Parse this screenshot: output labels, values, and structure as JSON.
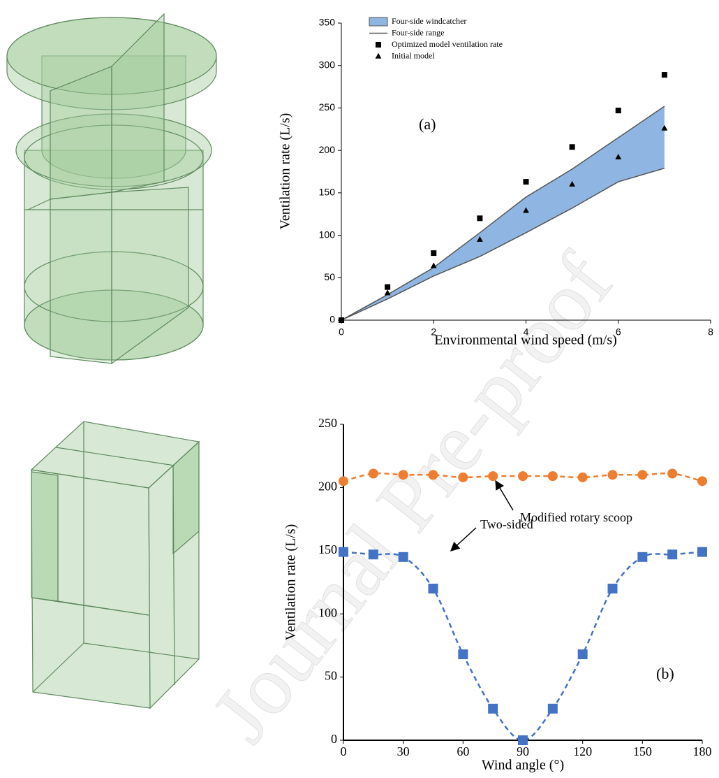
{
  "watermark": "Journal Pre-proof",
  "chart_data": [
    {
      "type": "scatter",
      "x": [
        0,
        1,
        2,
        3,
        4,
        5,
        6,
        7
      ],
      "series": [
        {
          "name": "Four-side windcatcher",
          "type": "band",
          "color": "#8fb6e2",
          "upper": [
            0,
            30,
            62,
            103,
            145,
            178,
            215,
            252
          ],
          "lower": [
            0,
            25,
            52,
            75,
            103,
            132,
            163,
            179
          ]
        },
        {
          "name": "Four-side range",
          "type": "band-edge",
          "color": "#555555"
        },
        {
          "name": "Optimized model ventilation rate",
          "type": "points",
          "marker": "square",
          "color": "#000000",
          "values": [
            0,
            39,
            79,
            120,
            163,
            204,
            247,
            289
          ]
        },
        {
          "name": "Initial model",
          "type": "points",
          "marker": "triangle",
          "color": "#000000",
          "values": [
            0,
            32,
            64,
            95,
            129,
            160,
            192,
            226
          ]
        }
      ],
      "xlim": [
        0,
        8
      ],
      "xticks": [
        0,
        2,
        4,
        6,
        8
      ],
      "ylim": [
        0,
        350
      ],
      "yticks": [
        0,
        50,
        100,
        150,
        200,
        250,
        300,
        350
      ],
      "xlabel": "Environmental wind speed (m/s)",
      "ylabel": "Ventilation rate (L/s)",
      "annotations": [
        "(a)"
      ],
      "legend": "top-left"
    },
    {
      "type": "line",
      "x": [
        0,
        15,
        30,
        45,
        60,
        75,
        90,
        105,
        120,
        135,
        150,
        165,
        180
      ],
      "series": [
        {
          "type": "dashed-markers",
          "marker": "circle",
          "color": "#ed7d31",
          "values": [
            205,
            211,
            210,
            210,
            208,
            209,
            209,
            209,
            208,
            210,
            210,
            211,
            205
          ]
        },
        {
          "type": "dashed-markers",
          "marker": "square",
          "color": "#4472c4",
          "values": [
            149,
            147,
            145,
            120,
            68,
            25,
            0,
            25,
            68,
            120,
            145,
            147,
            149
          ]
        }
      ],
      "xlim": [
        0,
        180
      ],
      "xticks": [
        0,
        30,
        60,
        90,
        120,
        150,
        180
      ],
      "ylim": [
        0,
        250
      ],
      "yticks": [
        0,
        50,
        100,
        150,
        200,
        250
      ],
      "xlabel": "Wind angle (°)",
      "ylabel": "Ventilation rate (L/s)",
      "annotations": [
        "Modified rotary scoop",
        "Two-sided",
        "(b)"
      ]
    }
  ]
}
